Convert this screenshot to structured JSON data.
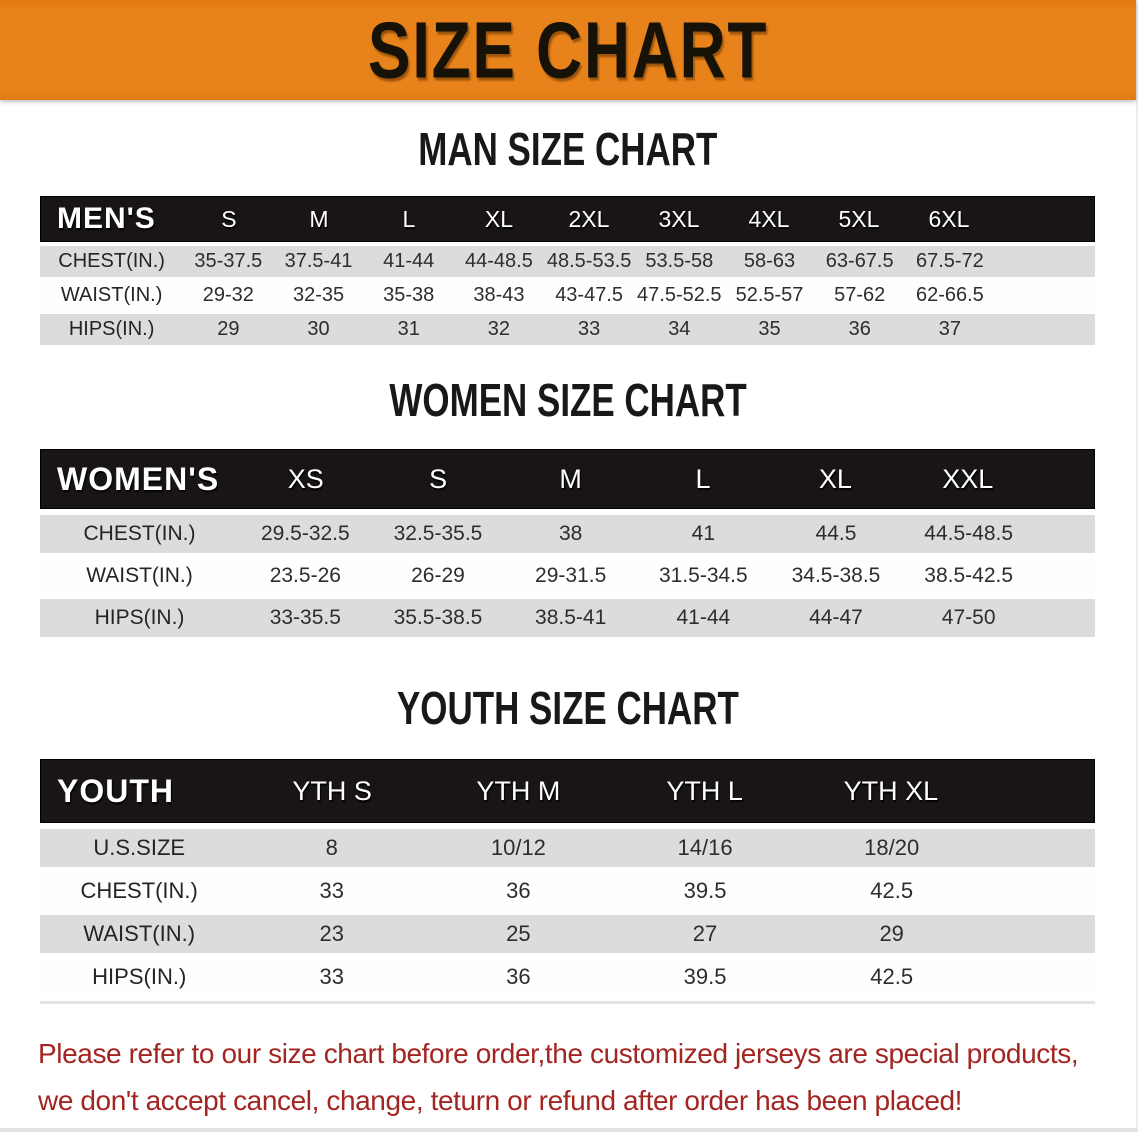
{
  "banner": {
    "title": "SIZE CHART",
    "bg_color": "#E8821A",
    "text_color": "#171208"
  },
  "sections": {
    "men": {
      "heading": "MAN SIZE CHART",
      "label": "MEN'S",
      "sizes": [
        "S",
        "M",
        "L",
        "XL",
        "2XL",
        "3XL",
        "4XL",
        "5XL",
        "6XL"
      ],
      "rows": [
        {
          "label": "CHEST(IN.)",
          "values": [
            "35-37.5",
            "37.5-41",
            "41-44",
            "44-48.5",
            "48.5-53.5",
            "53.5-58",
            "58-63",
            "63-67.5",
            "67.5-72"
          ]
        },
        {
          "label": "WAIST(IN.)",
          "values": [
            "29-32",
            "32-35",
            "35-38",
            "38-43",
            "43-47.5",
            "47.5-52.5",
            "52.5-57",
            "57-62",
            "62-66.5"
          ]
        },
        {
          "label": "HIPS(IN.)",
          "values": [
            "29",
            "30",
            "31",
            "32",
            "33",
            "34",
            "35",
            "36",
            "37"
          ]
        }
      ]
    },
    "women": {
      "heading": "WOMEN SIZE CHART",
      "label": "WOMEN'S",
      "sizes": [
        "XS",
        "S",
        "M",
        "L",
        "XL",
        "XXL"
      ],
      "rows": [
        {
          "label": "CHEST(IN.)",
          "values": [
            "29.5-32.5",
            "32.5-35.5",
            "38",
            "41",
            "44.5",
            "44.5-48.5"
          ]
        },
        {
          "label": "WAIST(IN.)",
          "values": [
            "23.5-26",
            "26-29",
            "29-31.5",
            "31.5-34.5",
            "34.5-38.5",
            "38.5-42.5"
          ]
        },
        {
          "label": "HIPS(IN.)",
          "values": [
            "33-35.5",
            "35.5-38.5",
            "38.5-41",
            "41-44",
            "44-47",
            "47-50"
          ]
        }
      ]
    },
    "youth": {
      "heading": "YOUTH SIZE CHART",
      "label": "YOUTH",
      "sizes": [
        "YTH S",
        "YTH M",
        "YTH L",
        "YTH XL"
      ],
      "rows": [
        {
          "label": "U.S.SIZE",
          "values": [
            "8",
            "10/12",
            "14/16",
            "18/20"
          ]
        },
        {
          "label": "CHEST(IN.)",
          "values": [
            "33",
            "36",
            "39.5",
            "42.5"
          ]
        },
        {
          "label": "WAIST(IN.)",
          "values": [
            "23",
            "25",
            "27",
            "29"
          ]
        },
        {
          "label": "HIPS(IN.)",
          "values": [
            "33",
            "36",
            "39.5",
            "42.5"
          ]
        }
      ]
    }
  },
  "note": {
    "line1": "Please refer to our size chart before order,the customized jerseys are special products,",
    "line2": "we don't accept cancel, change, teturn or refund after order has been placed!",
    "color": "#A32522"
  },
  "colors": {
    "banner_orange": "#E8821A",
    "header_bar_black": "#181514",
    "row_gray": "#DCDCDC",
    "note_red": "#A32522"
  }
}
